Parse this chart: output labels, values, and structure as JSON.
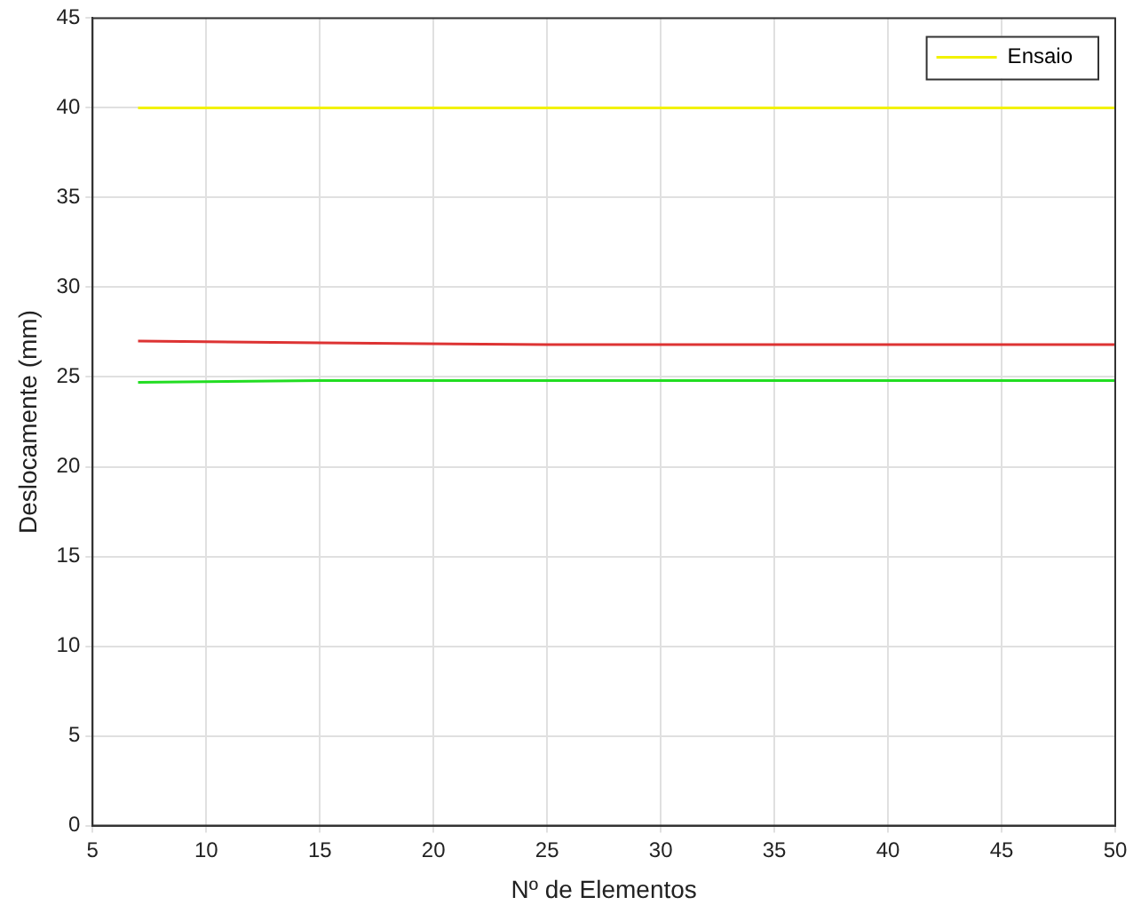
{
  "chart_data": {
    "type": "line",
    "xlabel": "Nº de Elementos",
    "ylabel": "Deslocamente (mm)",
    "xlim": [
      5,
      50
    ],
    "xticks": [
      5,
      10,
      15,
      20,
      25,
      30,
      35,
      40,
      45,
      50
    ],
    "ylim": [
      0,
      45
    ],
    "yticks": [
      0,
      5,
      10,
      15,
      20,
      25,
      30,
      35,
      40,
      45
    ],
    "grid": true,
    "legend": "top right",
    "marker": "none",
    "line_style": "solid",
    "series": [
      {
        "color": "#22dd22",
        "x": [
          7,
          15,
          25,
          35,
          50
        ],
        "values": [
          24.7,
          24.8,
          24.8,
          24.8,
          24.8
        ]
      },
      {
        "color": "#dd3333",
        "x": [
          7,
          15,
          25,
          35,
          50
        ],
        "values": [
          27.0,
          26.9,
          26.8,
          26.8,
          26.8
        ]
      },
      {
        "name": "Ensaio",
        "color": "#f2f200",
        "x": [
          7,
          50
        ],
        "values": [
          40,
          40
        ]
      }
    ]
  }
}
